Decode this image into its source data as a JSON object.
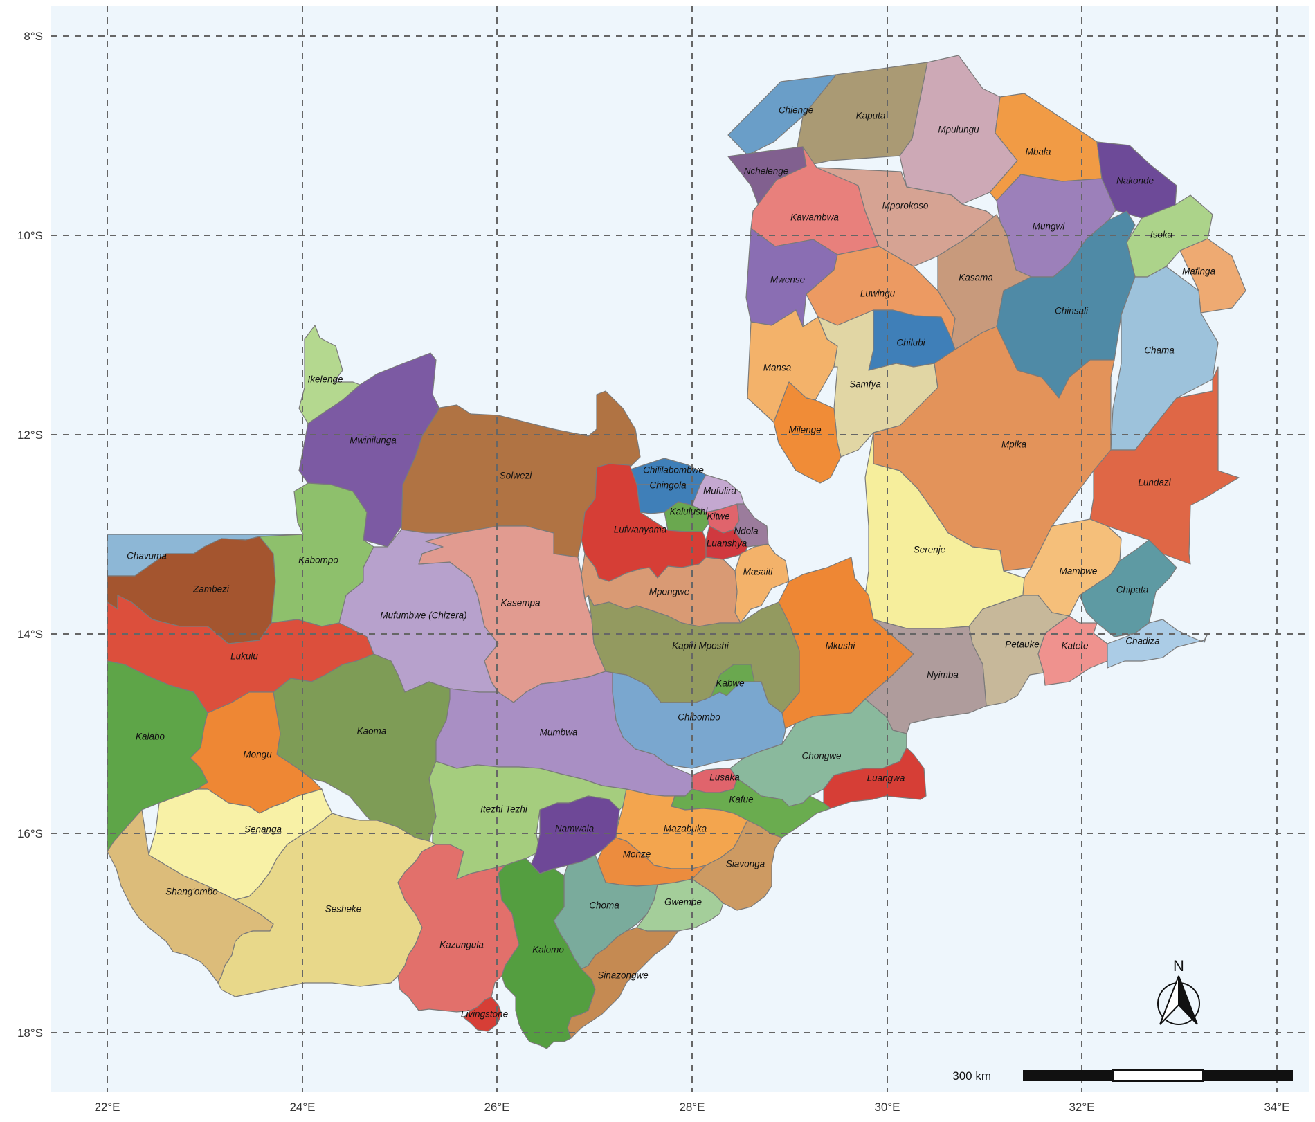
{
  "map": {
    "background": "#eef6fc",
    "axes": {
      "lat_labels": [
        "8°S",
        "10°S",
        "12°S",
        "14°S",
        "16°S",
        "18°S"
      ],
      "lon_labels": [
        "22°E",
        "24°E",
        "26°E",
        "28°E",
        "30°E",
        "32°E",
        "34°E"
      ]
    },
    "north_arrow": {
      "label": "N"
    },
    "scale_bar": {
      "label": "300 km"
    },
    "districts": [
      {
        "name": "Chienge",
        "color": "#6a9ec8"
      },
      {
        "name": "Kaputa",
        "color": "#aa9a74"
      },
      {
        "name": "Mpulungu",
        "color": "#cda9b6"
      },
      {
        "name": "Mbala",
        "color": "#f19b45"
      },
      {
        "name": "Nakonde",
        "color": "#6d4a98"
      },
      {
        "name": "Nchelenge",
        "color": "#81608f"
      },
      {
        "name": "Kawambwa",
        "color": "#e8807c"
      },
      {
        "name": "Mporokoso",
        "color": "#d6a393"
      },
      {
        "name": "Mungwi",
        "color": "#9c80ba"
      },
      {
        "name": "Isoka",
        "color": "#acd38a"
      },
      {
        "name": "Mafinga",
        "color": "#eeaa72"
      },
      {
        "name": "Mwense",
        "color": "#8a6eb3"
      },
      {
        "name": "Luwingu",
        "color": "#ec9a62"
      },
      {
        "name": "Kasama",
        "color": "#c89a7c"
      },
      {
        "name": "Chinsali",
        "color": "#4f8aa6"
      },
      {
        "name": "Chama",
        "color": "#9dc2db"
      },
      {
        "name": "Mansa",
        "color": "#f3b26a"
      },
      {
        "name": "Chilubi",
        "color": "#3f7fb8"
      },
      {
        "name": "Samfya",
        "color": "#e1d6a4"
      },
      {
        "name": "Milenge",
        "color": "#f08c37"
      },
      {
        "name": "Mpika",
        "color": "#e3935a"
      },
      {
        "name": "Lundazi",
        "color": "#df6746"
      },
      {
        "name": "Ikelenge",
        "color": "#b4d88f"
      },
      {
        "name": "Mwinilunga",
        "color": "#7c5aa3"
      },
      {
        "name": "Solwezi",
        "color": "#b07343"
      },
      {
        "name": "Chililabombwe",
        "color": "#3f7fb8"
      },
      {
        "name": "Chingola",
        "color": "#3f7fb8"
      },
      {
        "name": "Mufulira",
        "color": "#c4a8d0"
      },
      {
        "name": "Kalulushi",
        "color": "#6aa84f"
      },
      {
        "name": "Kitwe",
        "color": "#e0646c"
      },
      {
        "name": "Ndola",
        "color": "#9b7c9c"
      },
      {
        "name": "Luanshya",
        "color": "#d0393f"
      },
      {
        "name": "Lufwanyama",
        "color": "#d63e36"
      },
      {
        "name": "Masaiti",
        "color": "#f3b26a"
      },
      {
        "name": "Serenje",
        "color": "#f6ee9c"
      },
      {
        "name": "Mambwe",
        "color": "#f5bf7a"
      },
      {
        "name": "Chipata",
        "color": "#5e9aa3"
      },
      {
        "name": "Chavuma",
        "color": "#8db7d6"
      },
      {
        "name": "Zambezi",
        "color": "#a4552f"
      },
      {
        "name": "Kabompo",
        "color": "#8ec06c"
      },
      {
        "name": "Mufumbwe (Chizera)",
        "color": "#b7a1cc"
      },
      {
        "name": "Kasempa",
        "color": "#e19b90"
      },
      {
        "name": "Mpongwe",
        "color": "#d99a74"
      },
      {
        "name": "Mkushi",
        "color": "#ee8734"
      },
      {
        "name": "Petauke",
        "color": "#c7b89a"
      },
      {
        "name": "Katete",
        "color": "#ef928e"
      },
      {
        "name": "Chadiza",
        "color": "#abcce6"
      },
      {
        "name": "Lukulu",
        "color": "#dc4f3c"
      },
      {
        "name": "Kapiri Mposhi",
        "color": "#939a60"
      },
      {
        "name": "Nyimba",
        "color": "#af9c9c"
      },
      {
        "name": "Kabwe",
        "color": "#6aa84f"
      },
      {
        "name": "Kalabo",
        "color": "#5ea548"
      },
      {
        "name": "Kaoma",
        "color": "#7e9c56"
      },
      {
        "name": "Mumbwa",
        "color": "#a98fc4"
      },
      {
        "name": "Chibombo",
        "color": "#7aa7cf"
      },
      {
        "name": "Mongu",
        "color": "#ee8734"
      },
      {
        "name": "Chongwe",
        "color": "#8ab99d"
      },
      {
        "name": "Lusaka",
        "color": "#e0646c"
      },
      {
        "name": "Luangwa",
        "color": "#d63e36"
      },
      {
        "name": "Kafue",
        "color": "#6aac4f"
      },
      {
        "name": "Itezhi Tezhi",
        "color": "#a5cd7e"
      },
      {
        "name": "Namwala",
        "color": "#6e4897"
      },
      {
        "name": "Mazabuka",
        "color": "#f3a54e"
      },
      {
        "name": "Senanga",
        "color": "#f8f1a6"
      },
      {
        "name": "Monze",
        "color": "#ec8c3e"
      },
      {
        "name": "Siavonga",
        "color": "#cd9a62"
      },
      {
        "name": "Shang'ombo",
        "color": "#dcbc7a"
      },
      {
        "name": "Choma",
        "color": "#7aab9c"
      },
      {
        "name": "Gwembe",
        "color": "#a4ce9a"
      },
      {
        "name": "Sesheke",
        "color": "#e8d88a"
      },
      {
        "name": "Kazungula",
        "color": "#e2706b"
      },
      {
        "name": "Kalomo",
        "color": "#549e40"
      },
      {
        "name": "Sinazongwe",
        "color": "#c58a52"
      },
      {
        "name": "Livingstone",
        "color": "#d63e36"
      }
    ]
  }
}
